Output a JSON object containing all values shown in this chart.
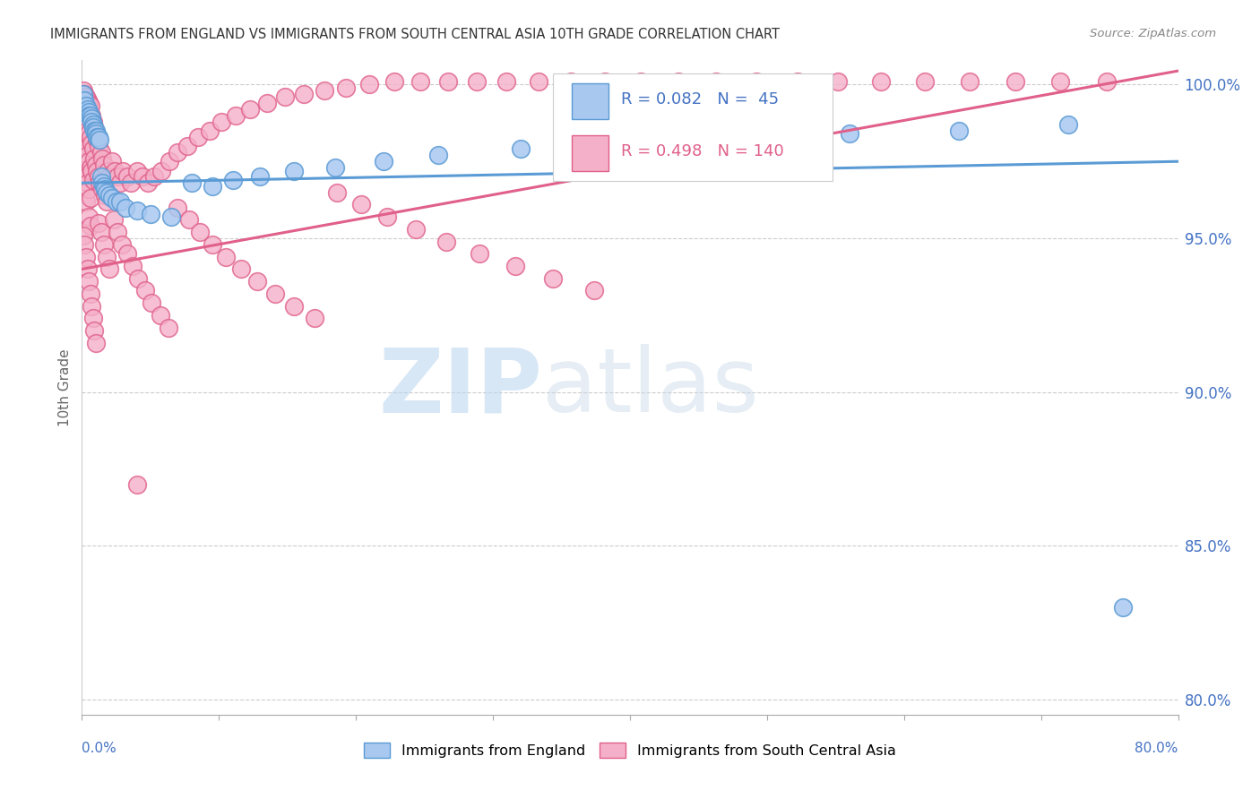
{
  "title": "IMMIGRANTS FROM ENGLAND VS IMMIGRANTS FROM SOUTH CENTRAL ASIA 10TH GRADE CORRELATION CHART",
  "source": "Source: ZipAtlas.com",
  "legend_england": "Immigrants from England",
  "legend_asia": "Immigrants from South Central Asia",
  "R_england": 0.082,
  "N_england": 45,
  "R_asia": 0.498,
  "N_asia": 140,
  "color_england_face": "#A8C8F0",
  "color_england_edge": "#5B9BD5",
  "color_asia_face": "#F4B0C8",
  "color_asia_edge": "#E0608A",
  "color_line_england": "#5B9BD5",
  "color_line_asia": "#E0608A",
  "color_axis_blue": "#4472C4",
  "color_title": "#333333",
  "color_source": "#888888",
  "watermark_zip": "ZIP",
  "watermark_atlas": "atlas",
  "xmin": 0.0,
  "xmax": 0.8,
  "ymin": 0.795,
  "ymax": 1.008,
  "yticks": [
    1.0,
    0.95,
    0.9,
    0.85,
    0.8
  ],
  "ytick_labels": [
    "100.0%",
    "95.0%",
    "90.0%",
    "85.0%",
    "80.0%"
  ],
  "ylabel": "10th Grade",
  "eng_x": [
    0.001,
    0.002,
    0.003,
    0.004,
    0.005,
    0.005,
    0.006,
    0.007,
    0.007,
    0.008,
    0.008,
    0.009,
    0.01,
    0.01,
    0.011,
    0.012,
    0.013,
    0.014,
    0.015,
    0.016,
    0.017,
    0.018,
    0.02,
    0.022,
    0.025,
    0.028,
    0.032,
    0.04,
    0.05,
    0.065,
    0.08,
    0.095,
    0.11,
    0.13,
    0.155,
    0.185,
    0.22,
    0.26,
    0.32,
    0.39,
    0.47,
    0.56,
    0.64,
    0.72,
    0.76
  ],
  "eng_y": [
    0.997,
    0.995,
    0.993,
    0.992,
    0.991,
    0.99,
    0.99,
    0.989,
    0.988,
    0.987,
    0.986,
    0.985,
    0.985,
    0.984,
    0.983,
    0.983,
    0.982,
    0.97,
    0.968,
    0.967,
    0.966,
    0.965,
    0.964,
    0.963,
    0.962,
    0.962,
    0.96,
    0.959,
    0.958,
    0.957,
    0.968,
    0.967,
    0.969,
    0.97,
    0.972,
    0.973,
    0.975,
    0.977,
    0.979,
    0.981,
    0.983,
    0.984,
    0.985,
    0.987,
    0.83
  ],
  "asia_x": [
    0.001,
    0.001,
    0.001,
    0.002,
    0.002,
    0.002,
    0.002,
    0.003,
    0.003,
    0.003,
    0.003,
    0.003,
    0.004,
    0.004,
    0.004,
    0.004,
    0.005,
    0.005,
    0.005,
    0.005,
    0.005,
    0.006,
    0.006,
    0.006,
    0.006,
    0.006,
    0.007,
    0.007,
    0.007,
    0.008,
    0.008,
    0.008,
    0.009,
    0.009,
    0.01,
    0.01,
    0.011,
    0.011,
    0.012,
    0.012,
    0.013,
    0.014,
    0.015,
    0.015,
    0.016,
    0.017,
    0.018,
    0.019,
    0.02,
    0.022,
    0.024,
    0.026,
    0.028,
    0.03,
    0.033,
    0.036,
    0.04,
    0.044,
    0.048,
    0.053,
    0.058,
    0.064,
    0.07,
    0.077,
    0.085,
    0.093,
    0.102,
    0.112,
    0.123,
    0.135,
    0.148,
    0.162,
    0.177,
    0.193,
    0.21,
    0.228,
    0.247,
    0.267,
    0.288,
    0.31,
    0.333,
    0.357,
    0.382,
    0.408,
    0.435,
    0.463,
    0.492,
    0.522,
    0.552,
    0.583,
    0.615,
    0.648,
    0.681,
    0.714,
    0.748,
    0.001,
    0.002,
    0.003,
    0.004,
    0.005,
    0.006,
    0.007,
    0.008,
    0.009,
    0.01,
    0.012,
    0.014,
    0.016,
    0.018,
    0.02,
    0.023,
    0.026,
    0.029,
    0.033,
    0.037,
    0.041,
    0.046,
    0.051,
    0.057,
    0.063,
    0.07,
    0.078,
    0.086,
    0.095,
    0.105,
    0.116,
    0.128,
    0.141,
    0.155,
    0.17,
    0.186,
    0.204,
    0.223,
    0.244,
    0.266,
    0.29,
    0.316,
    0.344,
    0.374,
    0.04
  ],
  "asia_y": [
    0.998,
    0.99,
    0.983,
    0.997,
    0.988,
    0.98,
    0.972,
    0.996,
    0.987,
    0.979,
    0.97,
    0.962,
    0.995,
    0.985,
    0.977,
    0.968,
    0.994,
    0.984,
    0.975,
    0.966,
    0.957,
    0.993,
    0.983,
    0.973,
    0.963,
    0.954,
    0.99,
    0.981,
    0.972,
    0.988,
    0.979,
    0.969,
    0.986,
    0.976,
    0.984,
    0.974,
    0.982,
    0.972,
    0.98,
    0.97,
    0.968,
    0.978,
    0.976,
    0.966,
    0.974,
    0.964,
    0.962,
    0.972,
    0.97,
    0.975,
    0.972,
    0.97,
    0.968,
    0.972,
    0.97,
    0.968,
    0.972,
    0.97,
    0.968,
    0.97,
    0.972,
    0.975,
    0.978,
    0.98,
    0.983,
    0.985,
    0.988,
    0.99,
    0.992,
    0.994,
    0.996,
    0.997,
    0.998,
    0.999,
    1.0,
    1.001,
    1.001,
    1.001,
    1.001,
    1.001,
    1.001,
    1.001,
    1.001,
    1.001,
    1.001,
    1.001,
    1.001,
    1.001,
    1.001,
    1.001,
    1.001,
    1.001,
    1.001,
    1.001,
    1.001,
    0.951,
    0.948,
    0.944,
    0.94,
    0.936,
    0.932,
    0.928,
    0.924,
    0.92,
    0.916,
    0.955,
    0.952,
    0.948,
    0.944,
    0.94,
    0.956,
    0.952,
    0.948,
    0.945,
    0.941,
    0.937,
    0.933,
    0.929,
    0.925,
    0.921,
    0.96,
    0.956,
    0.952,
    0.948,
    0.944,
    0.94,
    0.936,
    0.932,
    0.928,
    0.924,
    0.965,
    0.961,
    0.957,
    0.953,
    0.949,
    0.945,
    0.941,
    0.937,
    0.933,
    0.87
  ]
}
